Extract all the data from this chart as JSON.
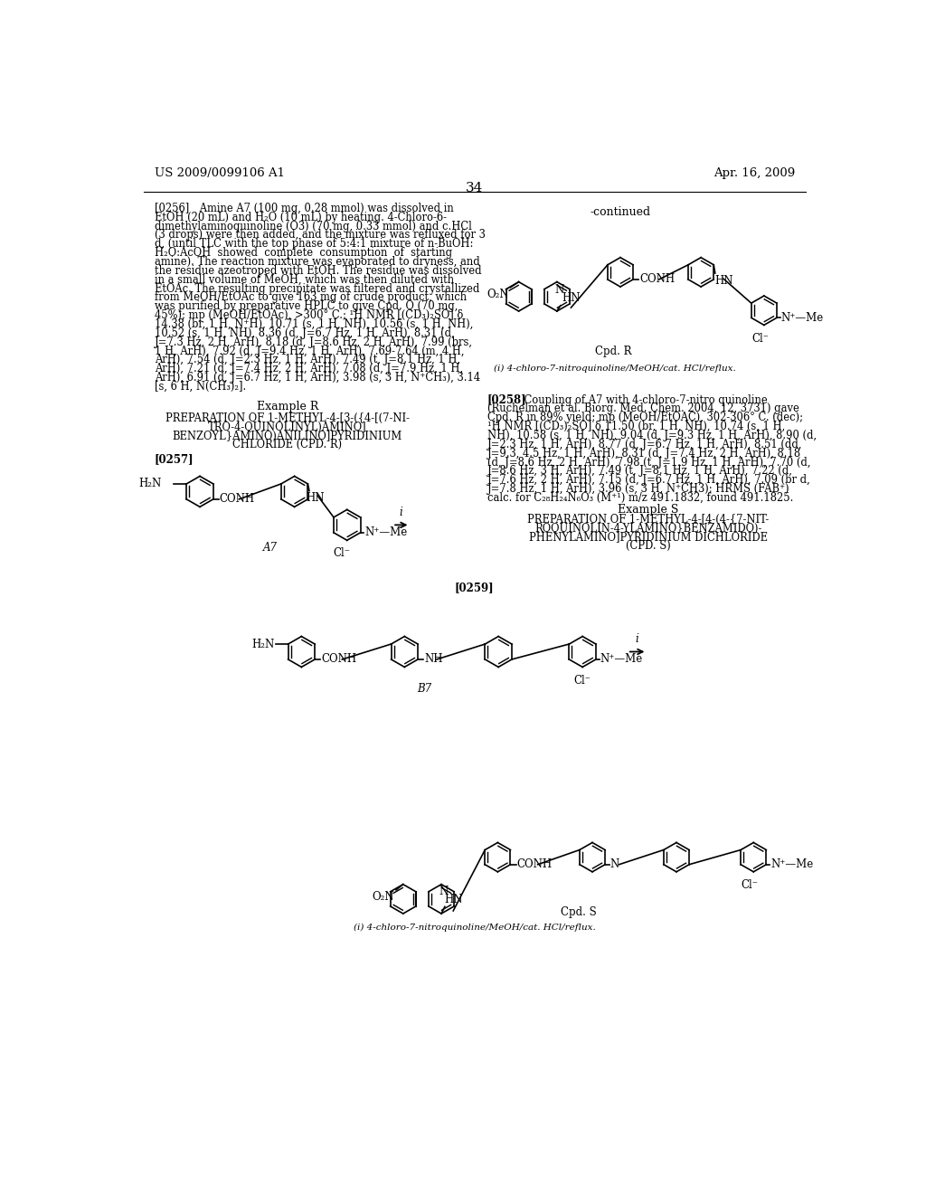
{
  "page_header_left": "US 2009/0099106 A1",
  "page_header_right": "Apr. 16, 2009",
  "page_number": "34",
  "background_color": "#ffffff",
  "continued_label": "-continued",
  "cpd_r_label": "Cpd. R",
  "cpd_r_note": "(i) 4-chloro-7-nitroquinoline/MeOH/cat. HCl/reflux.",
  "example_s_title": "Example S",
  "example_s_subtitle_line1": "PREPARATION OF 1-METHYL-4-[4-(4-{7-NIT-",
  "example_s_subtitle_line2": "ROQUINOLIN-4-YLAMINO}BENZAMIDO)-",
  "example_s_subtitle_line3": "PHENYLAMINO]PYRIDINIUM DICHLORIDE",
  "example_s_subtitle_line4": "(CPD. S)",
  "ref_0259": "[0259]",
  "a7_label": "A7",
  "b7_label": "B7",
  "cpd_s_label": "Cpd. S",
  "cpd_s_note": "(i) 4-chloro-7-nitroquinoline/MeOH/cat. HCl/reflux."
}
